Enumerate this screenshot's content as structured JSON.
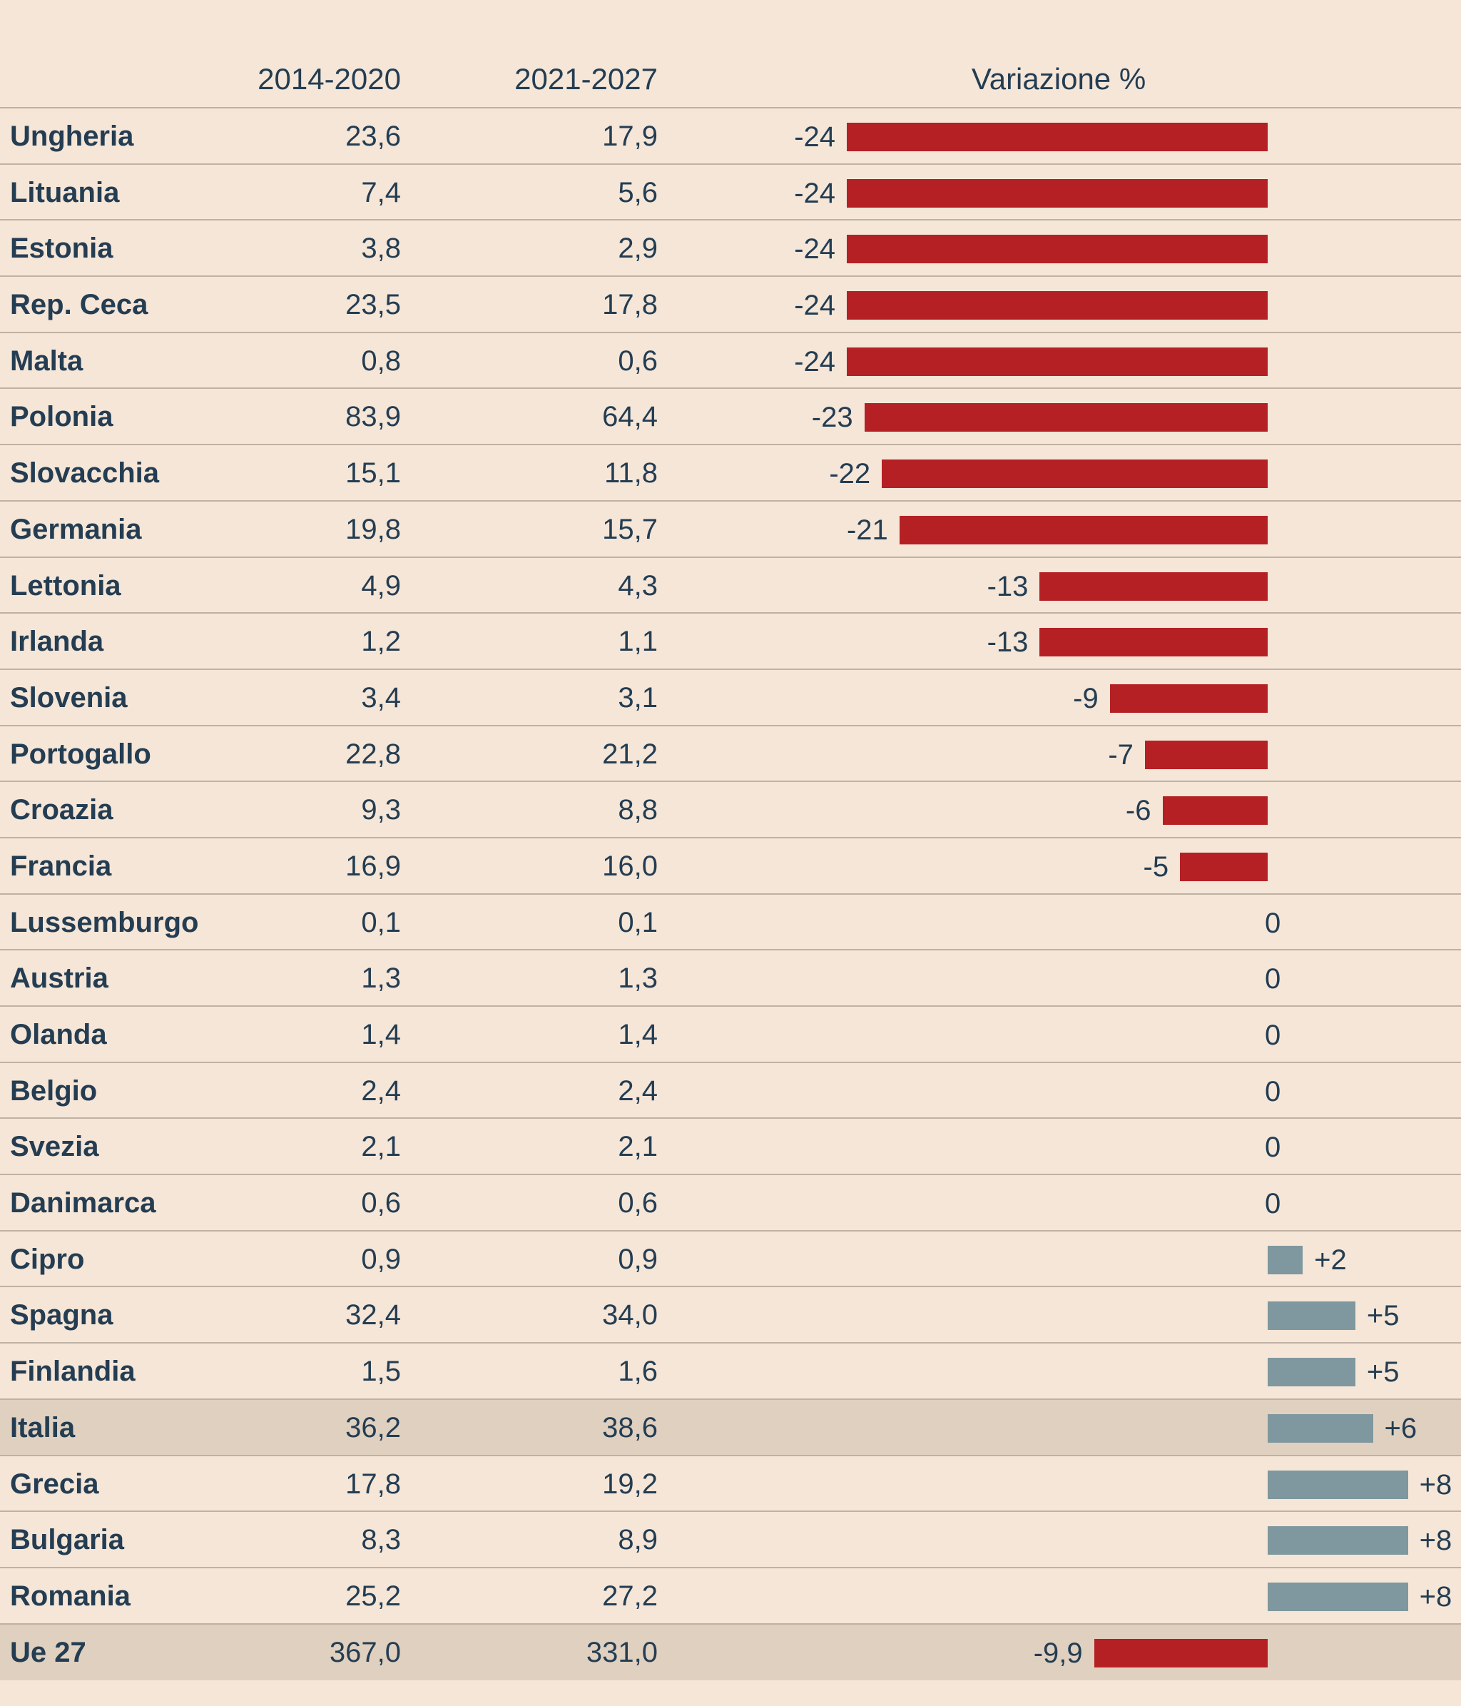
{
  "header": {
    "col_country": "",
    "col_period1": "2014-2020",
    "col_period2": "2021-2027",
    "col_change": "Variazione %"
  },
  "colors": {
    "background": "#f5e6d8",
    "highlight_row": "#e0d0c0",
    "negative_bar": "#b52024",
    "positive_bar": "#7f979e",
    "text": "#243d52",
    "divider": "#bfb1a3"
  },
  "chart_data": {
    "type": "bar",
    "orientation": "horizontal",
    "title": "",
    "columns": [
      "",
      "2014-2020",
      "2021-2027",
      "Variazione %"
    ],
    "categories": [
      "Ungheria",
      "Lituania",
      "Estonia",
      "Rep. Ceca",
      "Malta",
      "Polonia",
      "Slovacchia",
      "Germania",
      "Lettonia",
      "Irlanda",
      "Slovenia",
      "Portogallo",
      "Croazia",
      "Francia",
      "Lussemburgo",
      "Austria",
      "Olanda",
      "Belgio",
      "Svezia",
      "Danimarca",
      "Cipro",
      "Spagna",
      "Finlandia",
      "Italia",
      "Grecia",
      "Bulgaria",
      "Romania",
      "Ue 27"
    ],
    "xlim": [
      -24,
      8
    ],
    "grid": false,
    "legend": "none",
    "rows": [
      {
        "country": "Ungheria",
        "p1": "23,6",
        "p2": "17,9",
        "change": -24,
        "label": "-24",
        "highlight": false
      },
      {
        "country": "Lituania",
        "p1": "7,4",
        "p2": "5,6",
        "change": -24,
        "label": "-24",
        "highlight": false
      },
      {
        "country": "Estonia",
        "p1": "3,8",
        "p2": "2,9",
        "change": -24,
        "label": "-24",
        "highlight": false
      },
      {
        "country": "Rep. Ceca",
        "p1": "23,5",
        "p2": "17,8",
        "change": -24,
        "label": "-24",
        "highlight": false
      },
      {
        "country": "Malta",
        "p1": "0,8",
        "p2": "0,6",
        "change": -24,
        "label": "-24",
        "highlight": false
      },
      {
        "country": "Polonia",
        "p1": "83,9",
        "p2": "64,4",
        "change": -23,
        "label": "-23",
        "highlight": false
      },
      {
        "country": "Slovacchia",
        "p1": "15,1",
        "p2": "11,8",
        "change": -22,
        "label": "-22",
        "highlight": false
      },
      {
        "country": "Germania",
        "p1": "19,8",
        "p2": "15,7",
        "change": -21,
        "label": "-21",
        "highlight": false
      },
      {
        "country": "Lettonia",
        "p1": "4,9",
        "p2": "4,3",
        "change": -13,
        "label": "-13",
        "highlight": false
      },
      {
        "country": "Irlanda",
        "p1": "1,2",
        "p2": "1,1",
        "change": -13,
        "label": "-13",
        "highlight": false
      },
      {
        "country": "Slovenia",
        "p1": "3,4",
        "p2": "3,1",
        "change": -9,
        "label": "-9",
        "highlight": false
      },
      {
        "country": "Portogallo",
        "p1": "22,8",
        "p2": "21,2",
        "change": -7,
        "label": "-7",
        "highlight": false
      },
      {
        "country": "Croazia",
        "p1": "9,3",
        "p2": "8,8",
        "change": -6,
        "label": "-6",
        "highlight": false
      },
      {
        "country": "Francia",
        "p1": "16,9",
        "p2": "16,0",
        "change": -5,
        "label": "-5",
        "highlight": false
      },
      {
        "country": "Lussemburgo",
        "p1": "0,1",
        "p2": "0,1",
        "change": 0,
        "label": "0",
        "highlight": false
      },
      {
        "country": "Austria",
        "p1": "1,3",
        "p2": "1,3",
        "change": 0,
        "label": "0",
        "highlight": false
      },
      {
        "country": "Olanda",
        "p1": "1,4",
        "p2": "1,4",
        "change": 0,
        "label": "0",
        "highlight": false
      },
      {
        "country": "Belgio",
        "p1": "2,4",
        "p2": "2,4",
        "change": 0,
        "label": "0",
        "highlight": false
      },
      {
        "country": "Svezia",
        "p1": "2,1",
        "p2": "2,1",
        "change": 0,
        "label": "0",
        "highlight": false
      },
      {
        "country": "Danimarca",
        "p1": "0,6",
        "p2": "0,6",
        "change": 0,
        "label": "0",
        "highlight": false
      },
      {
        "country": "Cipro",
        "p1": "0,9",
        "p2": "0,9",
        "change": 2,
        "label": "+2",
        "highlight": false
      },
      {
        "country": "Spagna",
        "p1": "32,4",
        "p2": "34,0",
        "change": 5,
        "label": "+5",
        "highlight": false
      },
      {
        "country": "Finlandia",
        "p1": "1,5",
        "p2": "1,6",
        "change": 5,
        "label": "+5",
        "highlight": false
      },
      {
        "country": "Italia",
        "p1": "36,2",
        "p2": "38,6",
        "change": 6,
        "label": "+6",
        "highlight": true
      },
      {
        "country": "Grecia",
        "p1": "17,8",
        "p2": "19,2",
        "change": 8,
        "label": "+8",
        "highlight": false
      },
      {
        "country": "Bulgaria",
        "p1": "8,3",
        "p2": "8,9",
        "change": 8,
        "label": "+8",
        "highlight": false
      },
      {
        "country": "Romania",
        "p1": "25,2",
        "p2": "27,2",
        "change": 8,
        "label": "+8",
        "highlight": false
      },
      {
        "country": "Ue 27",
        "p1": "367,0",
        "p2": "331,0",
        "change": -9.9,
        "label": "-9,9",
        "highlight": true
      }
    ]
  }
}
